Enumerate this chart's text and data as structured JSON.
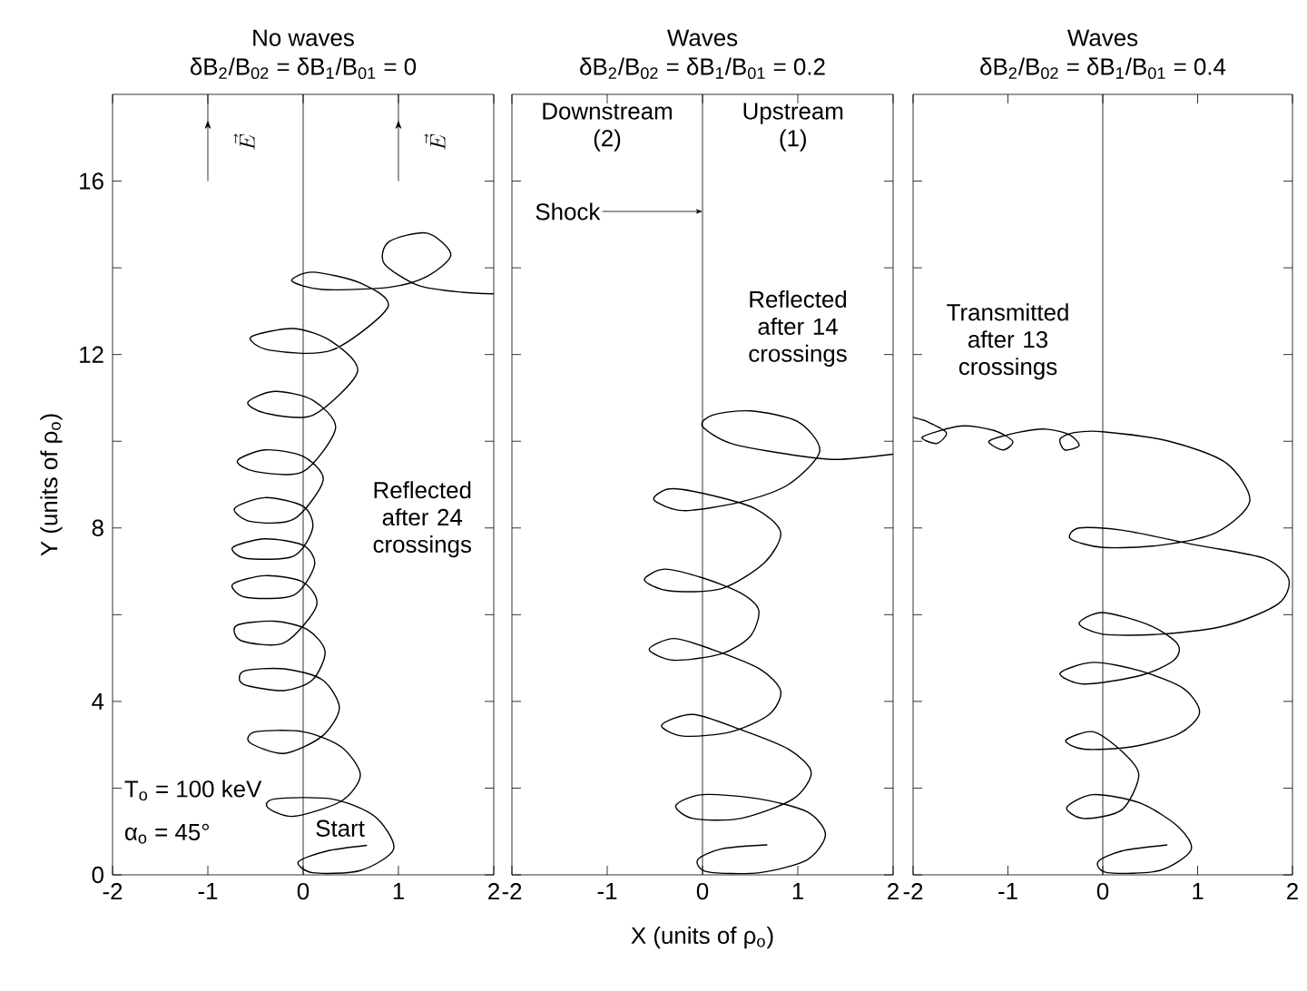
{
  "chart_data": [
    {
      "type": "line",
      "title": "No waves",
      "subtitle": "δB$_{2}$/B$_{02}$ = δB$_{1}$/B$_{01}$ = 0",
      "ylabel": "Y (units of ρ$_{o}$)",
      "xlim": [
        -2,
        2
      ],
      "ylim": [
        0,
        18
      ],
      "xticks": [
        -2,
        -1,
        0,
        1,
        2
      ],
      "yticks": [
        0,
        {
          "value": 2,
          "label": null
        },
        4,
        {
          "value": 6,
          "label": null
        },
        8,
        {
          "value": 10,
          "label": null
        },
        12,
        {
          "value": 14,
          "label": null
        },
        16
      ],
      "series": [
        {
          "color": "#000000",
          "x": [
            0.67,
            0.25,
            -0.05,
            0.1,
            0.6,
            0.95,
            0.75,
            0.3,
            -0.3,
            -0.37,
            -0.1,
            0.4,
            0.6,
            0.4,
            0,
            -0.5,
            -0.56,
            -0.2,
            0.2,
            0.38,
            0.2,
            -0.2,
            -0.62,
            -0.63,
            -0.2,
            0.1,
            0.23,
            0.05,
            -0.3,
            -0.7,
            -0.65,
            -0.2,
            0.14,
            0,
            -0.4,
            -0.74,
            -0.6,
            -0.1,
            0.12,
            0,
            -0.4,
            -0.74,
            -0.6,
            -0.1,
            0.1,
            0,
            -0.4,
            -0.72,
            -0.55,
            -0.1,
            0.21,
            0,
            -0.4,
            -0.69,
            -0.5,
            0,
            0.34,
            0.1,
            -0.3,
            -0.58,
            -0.4,
            0.1,
            0.57,
            0.3,
            -0.1,
            -0.55,
            -0.35,
            0.3,
            0.89,
            0.6,
            0.1,
            -0.12,
            0.2,
            0.9,
            1.3,
            1.55,
            1.3,
            0.9,
            0.85,
            1.2,
            1.6,
            2
          ],
          "values": [
            0.68,
            0.55,
            0.3,
            0.05,
            0.1,
            0.6,
            1.35,
            1.75,
            1.75,
            1.55,
            1.35,
            1.7,
            2.3,
            2.95,
            3.3,
            3.3,
            3.05,
            2.8,
            3.2,
            3.85,
            4.5,
            4.75,
            4.7,
            4.4,
            4.25,
            4.5,
            5.15,
            5.65,
            5.85,
            5.75,
            5.4,
            5.35,
            6.2,
            6.75,
            6.9,
            6.7,
            6.4,
            6.45,
            7.15,
            7.6,
            7.75,
            7.55,
            7.3,
            7.35,
            8.0,
            8.5,
            8.7,
            8.45,
            8.15,
            8.2,
            9.1,
            9.65,
            9.8,
            9.55,
            9.3,
            9.3,
            10.3,
            10.95,
            11.15,
            10.9,
            10.65,
            10.6,
            11.6,
            12.3,
            12.6,
            12.4,
            12.1,
            12.1,
            13.1,
            13.65,
            13.9,
            13.7,
            13.5,
            13.55,
            13.8,
            14.3,
            14.8,
            14.6,
            14.1,
            13.6,
            13.45,
            13.4
          ]
        }
      ],
      "ref_lines": [
        {
          "axis": "x",
          "value": 0
        }
      ],
      "annotations": [
        "\\vec{E}",
        "\\vec{E}",
        "Reflected after 24 crossings",
        "T$_{o}$ = 100 keV",
        "α$_{o}$ = 45°",
        {
          "text": "Start",
          "x": 0.67,
          "y": 0.68
        }
      ]
    },
    {
      "type": "line",
      "title": "Waves",
      "subtitle": "δB$_{2}$/B$_{02}$ = δB$_{1}$/B$_{01}$ = 0.2",
      "xlabel": "X (units of ρ$_{o}$)",
      "xlim": [
        -2,
        2
      ],
      "ylim": [
        0,
        18
      ],
      "xticks": [
        -2,
        -1,
        0,
        1,
        2
      ],
      "yticks": [
        0,
        {
          "value": 2,
          "label": null
        },
        4,
        {
          "value": 6,
          "label": null
        },
        8,
        {
          "value": 10,
          "label": null
        },
        12,
        {
          "value": 14,
          "label": null
        },
        16
      ],
      "tick_labels": "x",
      "series": [
        {
          "color": "#000000",
          "x": [
            0.68,
            0.2,
            -0.05,
            0.05,
            0.6,
            1.1,
            1.29,
            1.1,
            0.6,
            0,
            -0.28,
            -0.1,
            0.4,
            0.95,
            1.14,
            0.9,
            0.4,
            -0.1,
            -0.43,
            -0.2,
            0.3,
            0.7,
            0.82,
            0.6,
            0.1,
            -0.3,
            -0.56,
            -0.3,
            0.2,
            0.5,
            0.59,
            0.4,
            0,
            -0.4,
            -0.61,
            -0.35,
            0.2,
            0.65,
            0.82,
            0.55,
            0,
            -0.35,
            -0.51,
            -0.2,
            0.4,
            0.9,
            1.23,
            1.0,
            0.5,
            0.1,
            0,
            0.3,
            0.9,
            1.4,
            2
          ],
          "values": [
            0.69,
            0.6,
            0.35,
            0.07,
            0.05,
            0.35,
            0.93,
            1.45,
            1.75,
            1.85,
            1.6,
            1.3,
            1.3,
            1.75,
            2.37,
            2.9,
            3.35,
            3.7,
            3.45,
            3.2,
            3.3,
            3.7,
            4.24,
            4.75,
            5.2,
            5.45,
            5.2,
            4.95,
            5.1,
            5.5,
            6.1,
            6.5,
            6.85,
            7.05,
            6.8,
            6.55,
            6.6,
            7.2,
            7.9,
            8.45,
            8.8,
            8.9,
            8.65,
            8.4,
            8.6,
            9.0,
            9.77,
            10.45,
            10.7,
            10.6,
            10.34,
            9.95,
            9.7,
            9.58,
            9.7
          ]
        }
      ],
      "ref_lines": [
        {
          "axis": "x",
          "value": 0,
          "label": "Shock"
        }
      ],
      "annotations": [
        "Downstream (2)",
        "Upstream (1)",
        "Reflected after 14 crossings"
      ]
    },
    {
      "type": "line",
      "title": "Waves",
      "subtitle": "δB$_{2}$/B$_{02}$ = δB$_{1}$/B$_{01}$ = 0.4",
      "xlim": [
        -2,
        2
      ],
      "ylim": [
        0,
        18
      ],
      "xticks": [
        -2,
        -1,
        0,
        1,
        2
      ],
      "yticks": [
        0,
        {
          "value": 2,
          "label": null
        },
        4,
        {
          "value": 6,
          "label": null
        },
        8,
        {
          "value": 10,
          "label": null
        },
        12,
        {
          "value": 14,
          "label": null
        },
        16
      ],
      "tick_labels": "x",
      "series": [
        {
          "color": "#000000",
          "x": [
            0.68,
            0.2,
            -0.05,
            0.05,
            0.6,
            0.93,
            0.8,
            0.4,
            -0.1,
            -0.38,
            -0.2,
            0.2,
            0.38,
            0.2,
            -0.1,
            -0.39,
            -0.2,
            0.3,
            0.8,
            1.02,
            0.85,
            0.4,
            -0.1,
            -0.45,
            -0.2,
            0.4,
            0.75,
            0.79,
            0.5,
            0,
            -0.25,
            0,
            0.6,
            1.3,
            1.85,
            1.96,
            1.7,
            1.0,
            0.2,
            -0.25,
            -0.34,
            0,
            0.6,
            1.2,
            1.55,
            1.3,
            0.7,
            0,
            -0.3,
            -0.45,
            -0.4,
            -0.25,
            -0.35,
            -0.6,
            -0.9,
            -1.2,
            -1.05,
            -0.95,
            -1.15,
            -1.5,
            -1.9,
            -1.75,
            -1.65,
            -1.85,
            -2
          ],
          "values": [
            0.69,
            0.55,
            0.3,
            0.05,
            0.1,
            0.57,
            1.1,
            1.65,
            1.85,
            1.55,
            1.3,
            1.5,
            2.3,
            2.85,
            3.3,
            3.1,
            2.9,
            2.95,
            3.25,
            3.74,
            4.3,
            4.7,
            4.9,
            4.65,
            4.4,
            4.6,
            4.95,
            5.32,
            5.75,
            6.05,
            5.8,
            5.55,
            5.55,
            5.75,
            6.25,
            6.82,
            7.3,
            7.6,
            7.95,
            8.0,
            7.75,
            7.55,
            7.6,
            7.9,
            8.62,
            9.5,
            10.0,
            10.22,
            10.2,
            10.05,
            9.8,
            9.9,
            10.15,
            10.28,
            10.2,
            10.0,
            9.8,
            10.0,
            10.25,
            10.35,
            10.1,
            9.95,
            10.2,
            10.45,
            10.55
          ]
        }
      ],
      "ref_lines": [
        {
          "axis": "x",
          "value": 0
        }
      ],
      "annotations": [
        "Transmitted after 13 crossings"
      ]
    }
  ]
}
